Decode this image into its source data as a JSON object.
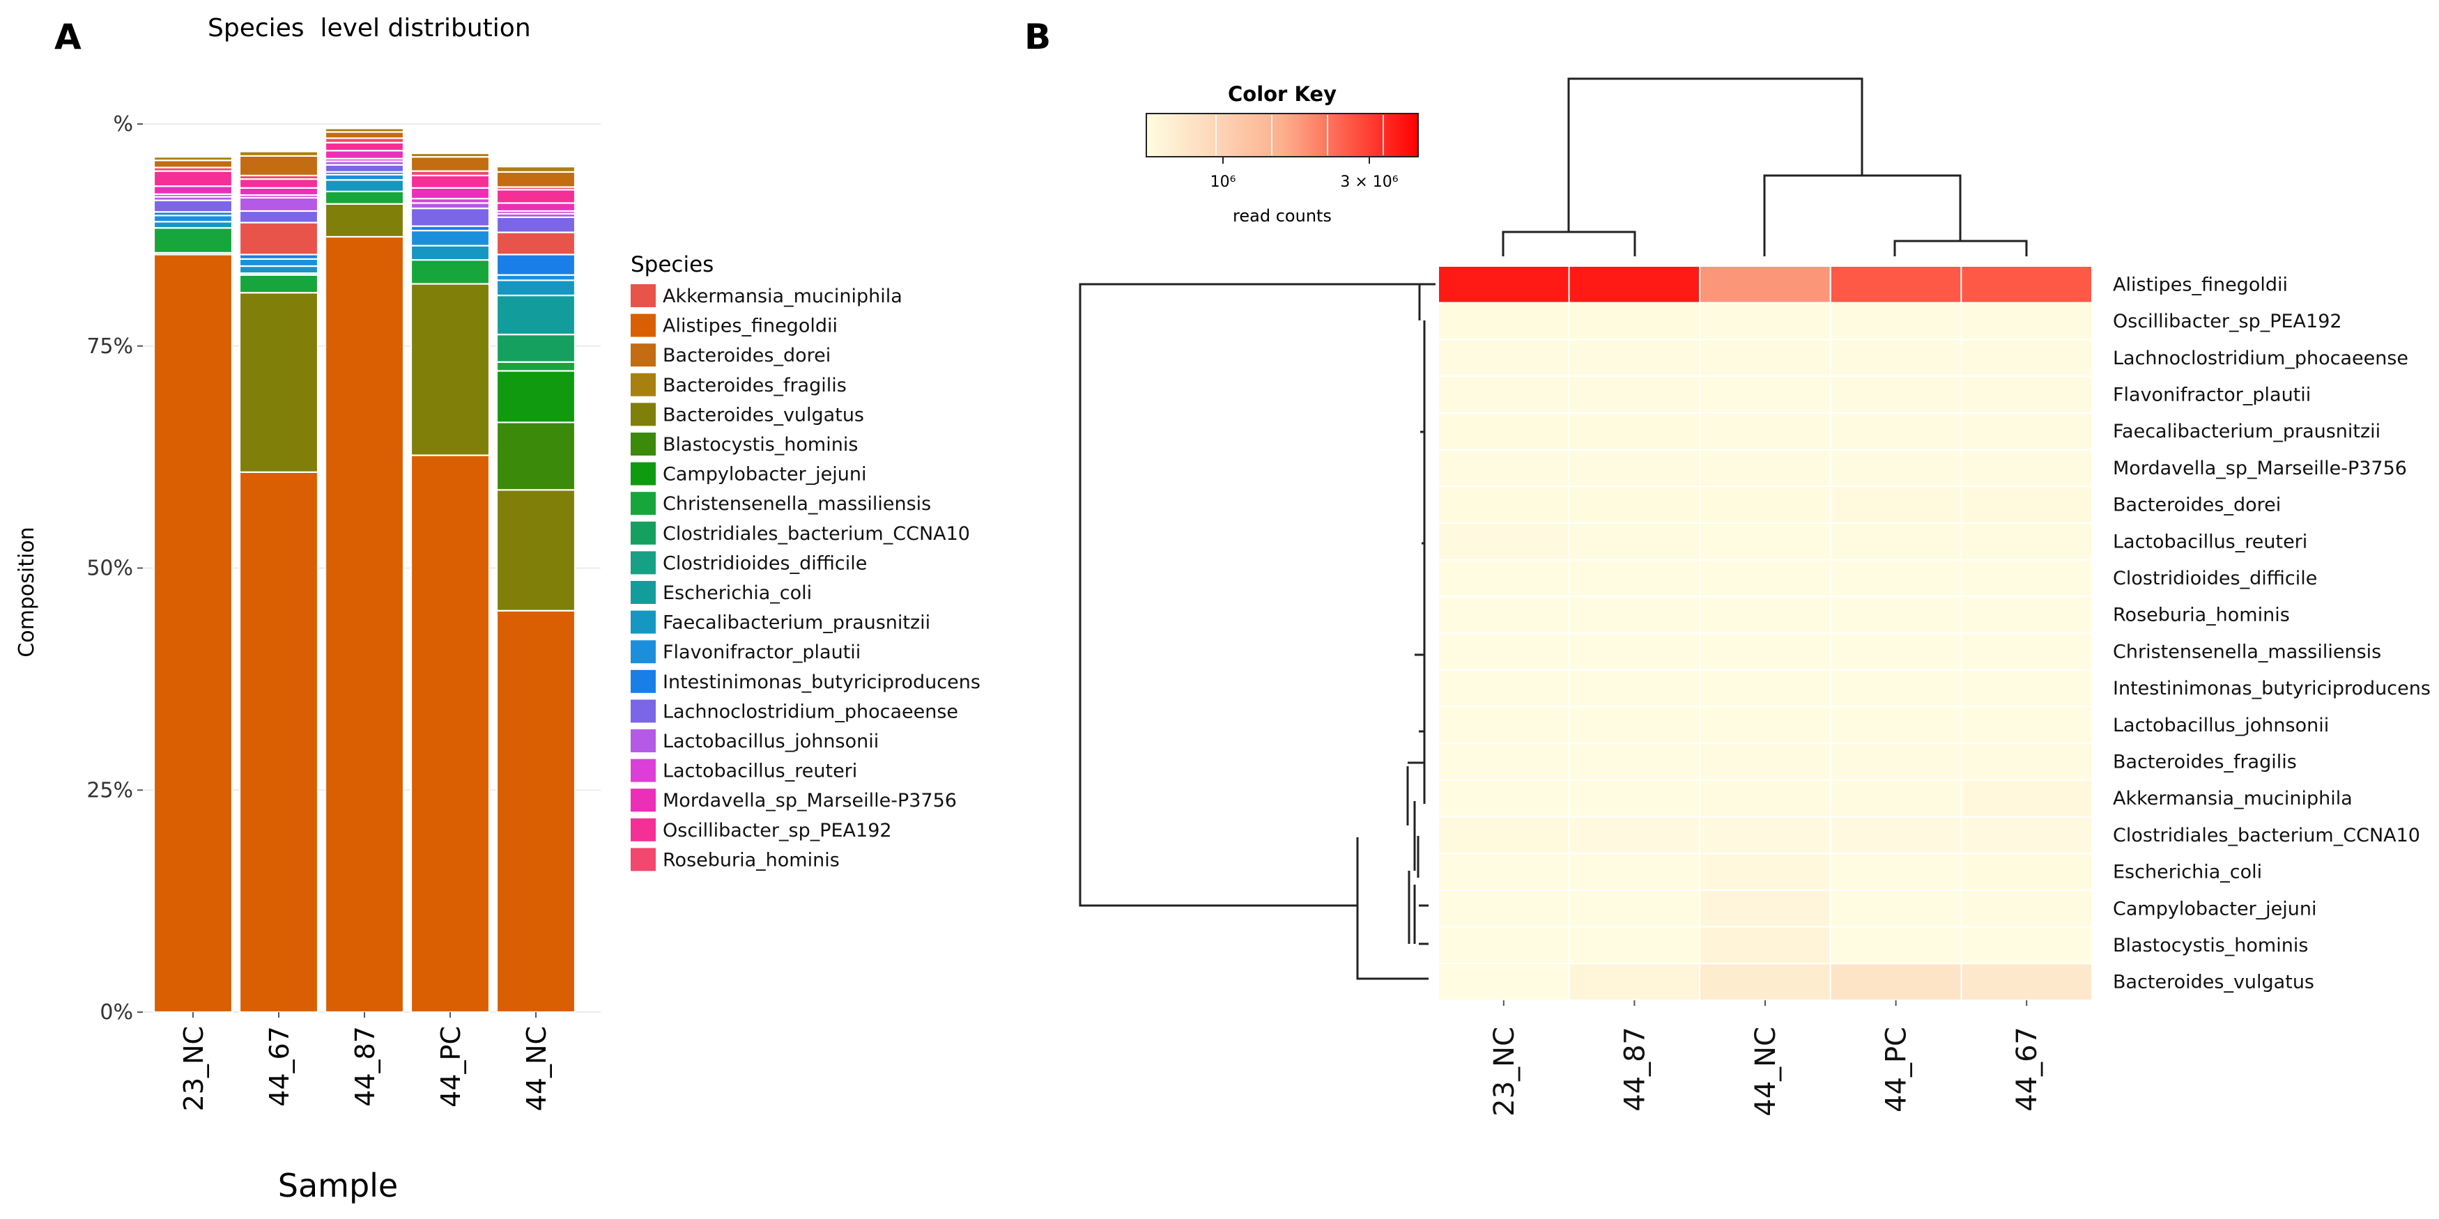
{
  "panel_a": {
    "letter": "A",
    "title": "Species  level distribution",
    "ylabel": "Composition",
    "xlabel": "Sample",
    "ytick_labels": [
      "0%",
      "25%",
      "50%",
      "75%",
      "%"
    ],
    "legend_title": "Species"
  },
  "panel_b": {
    "letter": "B",
    "color_key_title": "Color Key",
    "color_key_tick1": "10⁶",
    "color_key_tick2": "3 × 10⁶",
    "color_key_label": "read counts"
  },
  "colors": {
    "Akkermansia_muciniphila": "#e8534a",
    "Alistipes_finegoldii": "#d95f02",
    "Bacteroides_dorei": "#c36c12",
    "Bacteroides_fragilis": "#a8800f",
    "Bacteroides_vulgatus": "#7f7f0a",
    "Blastocystis_hominis": "#3b8a0a",
    "Campylobacter_jejuni": "#0f9a0f",
    "Christensenella_massiliensis": "#16a63b",
    "Clostridiales_bacterium_CCNA10": "#15a060",
    "Clostridioides_difficile": "#17a083",
    "Escherichia_coli": "#139c9c",
    "Faecalibacterium_prausnitzii": "#1597c2",
    "Flavonifractor_plautii": "#1c8fdc",
    "Intestinimonas_butyriciproducens": "#1a7ee8",
    "Lachnoclostridium_phocaeense": "#7a66e6",
    "Lactobacillus_johnsonii": "#b45ae6",
    "Lactobacillus_reuteri": "#dc3fd8",
    "Mordavella_sp_Marseille-P3756": "#ec2fb8",
    "Oscillibacter_sp_PEA192": "#f52f96",
    "Roseburia_hominis": "#f2476e"
  },
  "chart_data": [
    {
      "type": "bar",
      "stacked": true,
      "title": "Species  level distribution",
      "xlabel": "Sample",
      "ylabel": "Composition",
      "ylim": [
        0,
        100
      ],
      "categories": [
        "23_NC",
        "44_67",
        "44_87",
        "44_PC",
        "44_NC"
      ],
      "series": [
        {
          "name": "Alistipes_finegoldii",
          "values": [
            85.3,
            60.8,
            87.3,
            62.7,
            45.2
          ]
        },
        {
          "name": "Bacteroides_vulgatus",
          "values": [
            0.2,
            20.2,
            3.7,
            19.3,
            13.6
          ]
        },
        {
          "name": "Blastocystis_hominis",
          "values": [
            0,
            0,
            0,
            0,
            7.6
          ]
        },
        {
          "name": "Campylobacter_jejuni",
          "values": [
            0,
            0,
            0,
            0,
            5.8
          ]
        },
        {
          "name": "Christensenella_massiliensis",
          "values": [
            2.8,
            2.0,
            1.4,
            2.7,
            1.0
          ]
        },
        {
          "name": "Clostridiales_bacterium_CCNA10",
          "values": [
            0,
            0.2,
            0,
            0,
            3.1
          ]
        },
        {
          "name": "Escherichia_coli",
          "values": [
            0,
            0,
            0,
            0,
            4.4
          ]
        },
        {
          "name": "Faecalibacterium_prausnitzii",
          "values": [
            0.7,
            0.8,
            1.3,
            1.6,
            1.7
          ]
        },
        {
          "name": "Flavonifractor_plautii",
          "values": [
            0.7,
            0.8,
            0.6,
            1.7,
            0.6
          ]
        },
        {
          "name": "Intestinimonas_butyriciproducens",
          "values": [
            0.4,
            0.5,
            0.3,
            0.5,
            2.3
          ]
        },
        {
          "name": "Akkermansia_muciniphila",
          "values": [
            0,
            3.6,
            0,
            0,
            2.5
          ]
        },
        {
          "name": "Lachnoclostridium_phocaeense",
          "values": [
            1.3,
            1.3,
            0.8,
            2.0,
            1.7
          ]
        },
        {
          "name": "Lactobacillus_johnsonii",
          "values": [
            0.4,
            1.5,
            0.4,
            0.6,
            0.4
          ]
        },
        {
          "name": "Lactobacillus_reuteri",
          "values": [
            0.3,
            0.3,
            0.3,
            0.5,
            0.3
          ]
        },
        {
          "name": "Mordavella_sp_Marseille-P3756",
          "values": [
            0.9,
            0.8,
            0.9,
            1.2,
            0.9
          ]
        },
        {
          "name": "Oscillibacter_sp_PEA192",
          "values": [
            1.7,
            1.0,
            0.9,
            1.4,
            1.5
          ]
        },
        {
          "name": "Roseburia_hominis",
          "values": [
            0.4,
            0.4,
            0.5,
            0.5,
            0.3
          ]
        },
        {
          "name": "Bacteroides_dorei",
          "values": [
            0.8,
            2.2,
            0.7,
            1.6,
            1.7
          ]
        },
        {
          "name": "Bacteroides_fragilis",
          "values": [
            0.4,
            0.5,
            0.4,
            0.4,
            0.6
          ]
        }
      ]
    },
    {
      "type": "heatmap",
      "value_label": "read counts",
      "columns": [
        "23_NC",
        "44_87",
        "44_NC",
        "44_PC",
        "44_67"
      ],
      "rows": [
        "Alistipes_finegoldii",
        "Oscillibacter_sp_PEA192",
        "Lachnoclostridium_phocaeense",
        "Flavonifractor_plautii",
        "Faecalibacterium_prausnitzii",
        "Mordavella_sp_Marseille-P3756",
        "Bacteroides_dorei",
        "Lactobacillus_reuteri",
        "Clostridioides_difficile",
        "Roseburia_hominis",
        "Christensenella_massiliensis",
        "Intestinimonas_butyriciproducens",
        "Lactobacillus_johnsonii",
        "Bacteroides_fragilis",
        "Akkermansia_muciniphila",
        "Clostridiales_bacterium_CCNA10",
        "Escherichia_coli",
        "Campylobacter_jejuni",
        "Blastocystis_hominis",
        "Bacteroides_vulgatus"
      ],
      "values": [
        [
          3700000,
          3700000,
          2300000,
          3000000,
          3000000
        ],
        [
          60000,
          60000,
          40000,
          50000,
          50000
        ],
        [
          45000,
          45000,
          40000,
          45000,
          45000
        ],
        [
          45000,
          45000,
          35000,
          40000,
          40000
        ],
        [
          60000,
          60000,
          40000,
          55000,
          55000
        ],
        [
          50000,
          50000,
          40000,
          50000,
          50000
        ],
        [
          60000,
          60000,
          60000,
          90000,
          90000
        ],
        [
          80000,
          40000,
          30000,
          40000,
          40000
        ],
        [
          30000,
          30000,
          30000,
          30000,
          30000
        ],
        [
          30000,
          30000,
          30000,
          30000,
          30000
        ],
        [
          35000,
          35000,
          30000,
          35000,
          35000
        ],
        [
          30000,
          30000,
          30000,
          30000,
          30000
        ],
        [
          30000,
          30000,
          30000,
          30000,
          30000
        ],
        [
          30000,
          30000,
          45000,
          40000,
          40000
        ],
        [
          30000,
          30000,
          40000,
          40000,
          130000
        ],
        [
          90000,
          70000,
          70000,
          70000,
          70000
        ],
        [
          30000,
          30000,
          140000,
          30000,
          60000
        ],
        [
          30000,
          30000,
          200000,
          30000,
          40000
        ],
        [
          30000,
          30000,
          230000,
          30000,
          30000
        ],
        [
          30000,
          180000,
          450000,
          650000,
          550000
        ]
      ],
      "color_key": {
        "title": "Color Key",
        "ticks": [
          "10⁶",
          "3 × 10⁶"
        ],
        "range": [
          0,
          4000000
        ]
      }
    }
  ]
}
